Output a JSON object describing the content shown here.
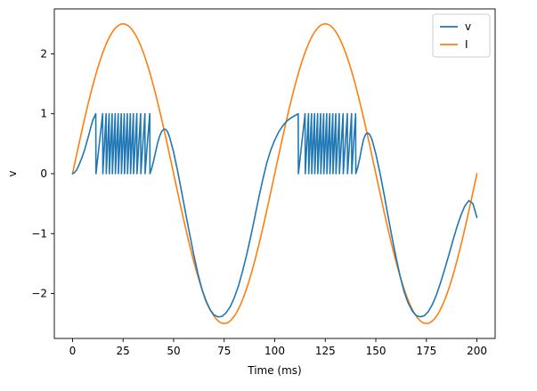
{
  "chart_data": {
    "type": "line",
    "title": "",
    "xlabel": "Time (ms)",
    "ylabel": "v",
    "xlim": [
      -9,
      209
    ],
    "ylim": [
      -2.75,
      2.75
    ],
    "xticks": [
      0,
      25,
      50,
      75,
      100,
      125,
      150,
      175,
      200
    ],
    "yticks": [
      -2,
      -1,
      0,
      1,
      2
    ],
    "ytick_labels": [
      "−2",
      "−1",
      "0",
      "1",
      "2"
    ],
    "grid": false,
    "legend_position": "top-right",
    "series": [
      {
        "name": "v",
        "color": "#1f77b4",
        "points": [
          [
            0,
            0
          ],
          [
            1,
            0.02
          ],
          [
            2,
            0.06
          ],
          [
            3,
            0.13
          ],
          [
            4,
            0.21
          ],
          [
            5,
            0.3
          ],
          [
            6,
            0.4
          ],
          [
            7,
            0.52
          ],
          [
            8,
            0.64
          ],
          [
            9,
            0.77
          ],
          [
            10,
            0.89
          ],
          [
            11.5,
            1.0
          ],
          [
            11.6,
            0.0
          ],
          [
            12.7,
            0.33
          ],
          [
            13.8,
            0.67
          ],
          [
            14.9,
            1.0
          ],
          [
            15.0,
            0.0
          ],
          [
            15.8,
            0.5
          ],
          [
            16.6,
            1.0
          ],
          [
            16.7,
            0.0
          ],
          [
            17.4,
            0.5
          ],
          [
            18.1,
            1.0
          ],
          [
            18.2,
            0.0
          ],
          [
            18.9,
            0.5
          ],
          [
            19.6,
            1.0
          ],
          [
            19.7,
            0.0
          ],
          [
            20.4,
            0.5
          ],
          [
            21.1,
            1.0
          ],
          [
            21.2,
            0.0
          ],
          [
            21.9,
            0.5
          ],
          [
            22.6,
            1.0
          ],
          [
            22.7,
            0.0
          ],
          [
            23.4,
            0.5
          ],
          [
            24.1,
            1.0
          ],
          [
            24.2,
            0.0
          ],
          [
            24.9,
            0.5
          ],
          [
            25.6,
            1.0
          ],
          [
            25.7,
            0.0
          ],
          [
            26.4,
            0.5
          ],
          [
            27.1,
            1.0
          ],
          [
            27.2,
            0.0
          ],
          [
            27.9,
            0.5
          ],
          [
            28.6,
            1.0
          ],
          [
            28.7,
            0.0
          ],
          [
            29.4,
            0.5
          ],
          [
            30.1,
            1.0
          ],
          [
            30.2,
            0.0
          ],
          [
            31.0,
            0.5
          ],
          [
            31.8,
            1.0
          ],
          [
            31.9,
            0.0
          ],
          [
            32.8,
            0.5
          ],
          [
            33.7,
            1.0
          ],
          [
            33.8,
            0.0
          ],
          [
            34.8,
            0.5
          ],
          [
            35.8,
            1.0
          ],
          [
            35.9,
            0.0
          ],
          [
            37.0,
            0.5
          ],
          [
            38.2,
            1.0
          ],
          [
            38.3,
            0.0
          ],
          [
            39.0,
            0.07
          ],
          [
            40,
            0.2
          ],
          [
            41,
            0.35
          ],
          [
            42,
            0.5
          ],
          [
            43,
            0.62
          ],
          [
            44,
            0.7
          ],
          [
            45,
            0.74
          ],
          [
            46,
            0.74
          ],
          [
            47,
            0.7
          ],
          [
            48,
            0.61
          ],
          [
            50,
            0.36
          ],
          [
            52,
            0.04
          ],
          [
            54,
            -0.31
          ],
          [
            56,
            -0.67
          ],
          [
            58,
            -1.02
          ],
          [
            60,
            -1.36
          ],
          [
            62,
            -1.67
          ],
          [
            64,
            -1.93
          ],
          [
            66,
            -2.13
          ],
          [
            68,
            -2.27
          ],
          [
            70,
            -2.36
          ],
          [
            72,
            -2.39
          ],
          [
            74,
            -2.38
          ],
          [
            76,
            -2.32
          ],
          [
            78,
            -2.22
          ],
          [
            80,
            -2.07
          ],
          [
            82,
            -1.88
          ],
          [
            84,
            -1.64
          ],
          [
            86,
            -1.37
          ],
          [
            88,
            -1.07
          ],
          [
            90,
            -0.75
          ],
          [
            92,
            -0.42
          ],
          [
            94,
            -0.11
          ],
          [
            96,
            0.17
          ],
          [
            98,
            0.39
          ],
          [
            100,
            0.56
          ],
          [
            102,
            0.7
          ],
          [
            104,
            0.8
          ],
          [
            106,
            0.88
          ],
          [
            108,
            0.93
          ],
          [
            110,
            0.97
          ],
          [
            111.6,
            1.0
          ],
          [
            111.7,
            0.0
          ],
          [
            112.8,
            0.33
          ],
          [
            113.9,
            0.67
          ],
          [
            115.0,
            1.0
          ],
          [
            115.1,
            0.0
          ],
          [
            115.9,
            0.5
          ],
          [
            116.7,
            1.0
          ],
          [
            116.8,
            0.0
          ],
          [
            117.5,
            0.5
          ],
          [
            118.2,
            1.0
          ],
          [
            118.3,
            0.0
          ],
          [
            119.0,
            0.5
          ],
          [
            119.7,
            1.0
          ],
          [
            119.8,
            0.0
          ],
          [
            120.5,
            0.5
          ],
          [
            121.2,
            1.0
          ],
          [
            121.3,
            0.0
          ],
          [
            122.0,
            0.5
          ],
          [
            122.7,
            1.0
          ],
          [
            122.8,
            0.0
          ],
          [
            123.5,
            0.5
          ],
          [
            124.2,
            1.0
          ],
          [
            124.3,
            0.0
          ],
          [
            125.0,
            0.5
          ],
          [
            125.7,
            1.0
          ],
          [
            125.8,
            0.0
          ],
          [
            126.5,
            0.5
          ],
          [
            127.2,
            1.0
          ],
          [
            127.3,
            0.0
          ],
          [
            128.0,
            0.5
          ],
          [
            128.7,
            1.0
          ],
          [
            128.8,
            0.0
          ],
          [
            129.5,
            0.5
          ],
          [
            130.2,
            1.0
          ],
          [
            130.3,
            0.0
          ],
          [
            131.1,
            0.5
          ],
          [
            131.9,
            1.0
          ],
          [
            132.0,
            0.0
          ],
          [
            132.9,
            0.5
          ],
          [
            133.8,
            1.0
          ],
          [
            133.9,
            0.0
          ],
          [
            134.9,
            0.5
          ],
          [
            135.9,
            1.0
          ],
          [
            136.0,
            0.0
          ],
          [
            137.0,
            0.5
          ],
          [
            138.0,
            1.0
          ],
          [
            138.1,
            0.0
          ],
          [
            139.0,
            0.5
          ],
          [
            140.0,
            1.0
          ],
          [
            140.1,
            0.0
          ],
          [
            141,
            0.1
          ],
          [
            142,
            0.25
          ],
          [
            143,
            0.43
          ],
          [
            144,
            0.58
          ],
          [
            145,
            0.66
          ],
          [
            146,
            0.68
          ],
          [
            147,
            0.65
          ],
          [
            148,
            0.58
          ],
          [
            150,
            0.33
          ],
          [
            152,
            0.02
          ],
          [
            154,
            -0.33
          ],
          [
            156,
            -0.7
          ],
          [
            158,
            -1.06
          ],
          [
            160,
            -1.4
          ],
          [
            162,
            -1.71
          ],
          [
            164,
            -1.97
          ],
          [
            166,
            -2.16
          ],
          [
            168,
            -2.29
          ],
          [
            170,
            -2.37
          ],
          [
            172,
            -2.39
          ],
          [
            174,
            -2.37
          ],
          [
            176,
            -2.3
          ],
          [
            178,
            -2.18
          ],
          [
            180,
            -2.02
          ],
          [
            182,
            -1.82
          ],
          [
            184,
            -1.6
          ],
          [
            186,
            -1.37
          ],
          [
            188,
            -1.13
          ],
          [
            190,
            -0.9
          ],
          [
            192,
            -0.7
          ],
          [
            194,
            -0.54
          ],
          [
            196,
            -0.45
          ],
          [
            198,
            -0.5
          ],
          [
            200,
            -0.73
          ]
        ]
      },
      {
        "name": "I",
        "color": "#ff7f0e",
        "function": "2.5*sin(2*pi*t/100)",
        "x_range": [
          0,
          200
        ]
      }
    ]
  }
}
